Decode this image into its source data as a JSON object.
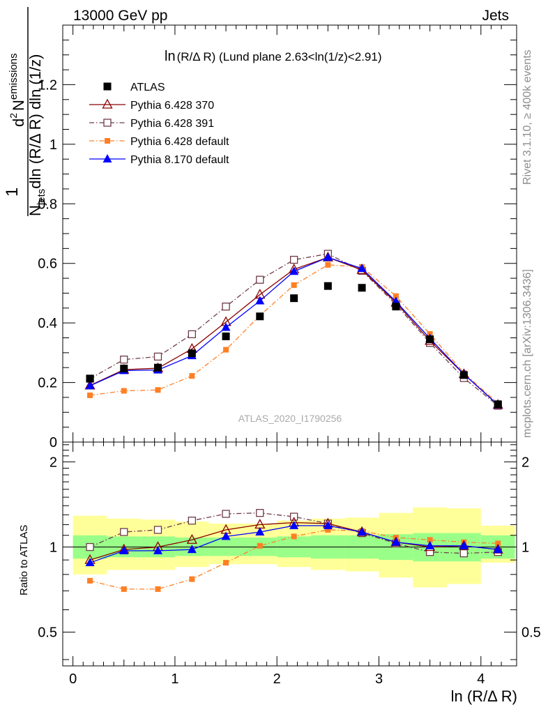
{
  "header": {
    "left": "13000 GeV pp",
    "right": "Jets"
  },
  "side_texts": {
    "rivet": "Rivet 3.1.10, ≥ 400k events",
    "mcplots": "mcplots.cern.ch [arXiv:1306.3436]"
  },
  "watermark": "ATLAS_2020_I1790256",
  "colors": {
    "atlas": "#000000",
    "py6_370": "#8b0000",
    "py6_391": "#6e3b47",
    "py6_default": "#ff7f24",
    "py8_default": "#0000ff",
    "band_inner": "#99ff88",
    "band_outer": "#ffff99"
  },
  "chart_data": [
    {
      "type": "line",
      "title_main": "ln",
      "title_rest": "(R/Δ R) (Lund plane 2.63<ln(1/z)<2.91)",
      "ylabel": "1/N_jets dln(R/Δ R) dln(1/z) d²N_emissions",
      "ylabel_parts": {
        "frac_num": "1",
        "frac_den": "N",
        "frac_den_sub": "jets",
        "frac_den_rest": "dln (R/Δ R) dln (1/z)",
        "num_prefix": "d",
        "num_sup": "2",
        "num_main": "N",
        "num_sub": "emissions"
      },
      "xlim": [
        -0.1,
        4.35
      ],
      "ylim": [
        0,
        1.4
      ],
      "yticks": [
        0,
        0.2,
        0.4,
        0.6,
        0.8,
        1,
        1.2
      ],
      "ytick_labels": [
        "0",
        "0.2",
        "0.4",
        "0.6",
        "0.8",
        "1",
        "1.2"
      ],
      "x": [
        0.167,
        0.5,
        0.833,
        1.167,
        1.5,
        1.833,
        2.167,
        2.5,
        2.833,
        3.167,
        3.5,
        3.833,
        4.167
      ],
      "legend": {
        "placement": "top-left"
      },
      "series": [
        {
          "name": "ATLAS",
          "marker": "filled-square",
          "values": [
            0.213,
            0.247,
            0.25,
            0.298,
            0.355,
            0.422,
            0.483,
            0.524,
            0.518,
            0.455,
            0.345,
            0.225,
            0.127
          ]
        },
        {
          "name": "Pythia 6.428 370",
          "marker": "open-triangle",
          "dash": "solid",
          "values": [
            0.19,
            0.243,
            0.248,
            0.313,
            0.403,
            0.495,
            0.58,
            0.62,
            0.578,
            0.468,
            0.34,
            0.228,
            0.125
          ]
        },
        {
          "name": "Pythia 6.428 391",
          "marker": "open-square",
          "dash": "dashdot",
          "values": [
            0.213,
            0.277,
            0.287,
            0.362,
            0.455,
            0.545,
            0.612,
            0.632,
            0.575,
            0.462,
            0.333,
            0.215,
            0.122
          ]
        },
        {
          "name": "Pythia 6.428 default",
          "marker": "small-filled-square",
          "dash": "dashdot",
          "values": [
            0.157,
            0.172,
            0.175,
            0.222,
            0.31,
            0.425,
            0.527,
            0.595,
            0.588,
            0.49,
            0.363,
            0.232,
            0.13
          ]
        },
        {
          "name": "Pythia 8.170 default",
          "marker": "filled-triangle",
          "dash": "solid",
          "values": [
            0.189,
            0.24,
            0.242,
            0.29,
            0.385,
            0.474,
            0.573,
            0.62,
            0.583,
            0.472,
            0.348,
            0.228,
            0.125
          ]
        }
      ]
    },
    {
      "type": "line",
      "ylabel": "Ratio to ATLAS",
      "xlabel": "ln (R/Δ R)",
      "xlim": [
        -0.1,
        4.35
      ],
      "ylim": [
        0.38,
        2.35
      ],
      "log_y": true,
      "xticks": [
        0,
        1,
        2,
        3,
        4
      ],
      "xtick_labels": [
        "0",
        "1",
        "2",
        "3",
        "4"
      ],
      "yticks": [
        0.5,
        1,
        2
      ],
      "ytick_labels": [
        "0.5",
        "1",
        "2"
      ],
      "bin_edges": [
        0,
        0.333,
        0.667,
        1.0,
        1.333,
        1.667,
        2.0,
        2.333,
        2.667,
        3.0,
        3.333,
        3.667,
        4.0,
        4.333
      ],
      "band_inner": [
        [
          0.91,
          1.1
        ],
        [
          0.92,
          1.09
        ],
        [
          0.92,
          1.09
        ],
        [
          0.93,
          1.08
        ],
        [
          0.93,
          1.08
        ],
        [
          0.93,
          1.08
        ],
        [
          0.92,
          1.09
        ],
        [
          0.91,
          1.1
        ],
        [
          0.91,
          1.1
        ],
        [
          0.9,
          1.11
        ],
        [
          0.89,
          1.12
        ],
        [
          0.89,
          1.12
        ],
        [
          0.91,
          1.1
        ]
      ],
      "band_outer": [
        [
          0.8,
          1.29
        ],
        [
          0.83,
          1.26
        ],
        [
          0.83,
          1.25
        ],
        [
          0.85,
          1.23
        ],
        [
          0.87,
          1.21
        ],
        [
          0.87,
          1.21
        ],
        [
          0.85,
          1.24
        ],
        [
          0.83,
          1.26
        ],
        [
          0.82,
          1.27
        ],
        [
          0.78,
          1.32
        ],
        [
          0.72,
          1.38
        ],
        [
          0.74,
          1.37
        ],
        [
          0.88,
          1.19
        ]
      ],
      "series": [
        {
          "name": "Pythia 6.428 370",
          "values": [
            0.9,
            0.98,
            1.0,
            1.06,
            1.15,
            1.2,
            1.22,
            1.21,
            1.13,
            1.04,
            1.0,
            1.01,
            0.98
          ]
        },
        {
          "name": "Pythia 6.428 391",
          "values": [
            1.0,
            1.13,
            1.15,
            1.24,
            1.31,
            1.32,
            1.28,
            1.21,
            1.12,
            1.03,
            0.96,
            0.95,
            0.96
          ]
        },
        {
          "name": "Pythia 6.428 default",
          "values": [
            0.76,
            0.71,
            0.71,
            0.77,
            0.88,
            1.01,
            1.09,
            1.15,
            1.14,
            1.08,
            1.06,
            1.04,
            1.03
          ]
        },
        {
          "name": "Pythia 8.170 default",
          "values": [
            0.88,
            0.97,
            0.97,
            0.98,
            1.09,
            1.13,
            1.19,
            1.19,
            1.13,
            1.04,
            1.01,
            1.01,
            0.98
          ]
        }
      ]
    }
  ]
}
